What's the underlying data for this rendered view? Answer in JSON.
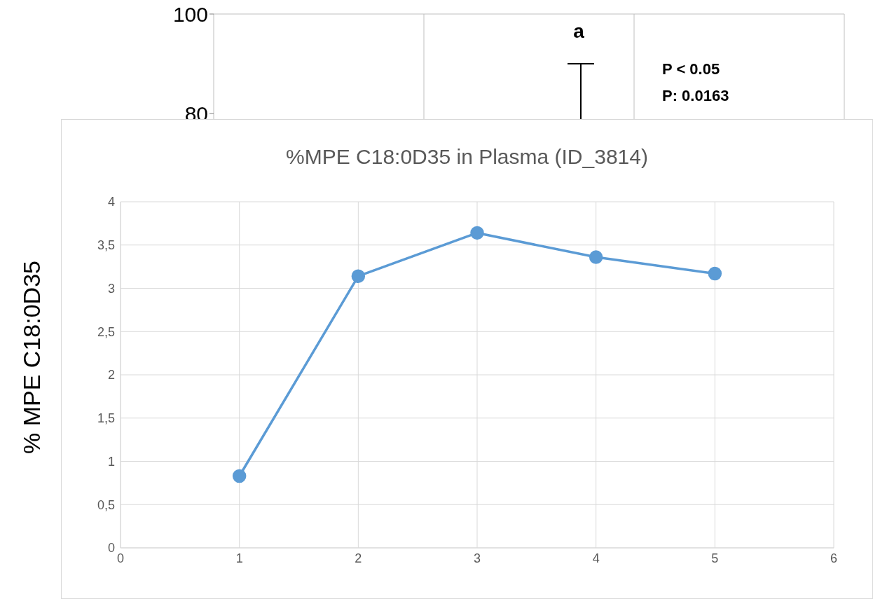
{
  "chart_data": [
    {
      "type": "bar",
      "ylabel": "% MPE C18:0D35",
      "categories": [
        null,
        null,
        null
      ],
      "values": [
        null,
        null,
        null
      ],
      "ylim": [
        0,
        100
      ],
      "yticks": [
        80,
        100
      ],
      "grid": "x",
      "annotations": [
        "a",
        "P < 0.05",
        "P: 0.0163"
      ]
    },
    {
      "type": "line",
      "title": "%MPE C18:0D35 in Plasma (ID_3814)",
      "x": [
        1,
        2,
        3,
        4,
        5
      ],
      "series": [
        {
          "color": "#5b9bd5",
          "values": [
            0.83,
            3.14,
            3.64,
            3.36,
            3.17
          ]
        }
      ],
      "xlim": [
        0,
        6
      ],
      "xticks": [
        0,
        1,
        2,
        3,
        4,
        5,
        6
      ],
      "ylim": [
        0,
        4
      ],
      "yticks": [
        0,
        {
          "value": 0.5,
          "label": "0,5"
        },
        1,
        {
          "value": 1.5,
          "label": "1,5"
        },
        2,
        {
          "value": 2.5,
          "label": "2,5"
        },
        3,
        {
          "value": 3.5,
          "label": "3,5"
        },
        4
      ],
      "grid": true,
      "marker": "circle",
      "line_style": "solid"
    }
  ]
}
